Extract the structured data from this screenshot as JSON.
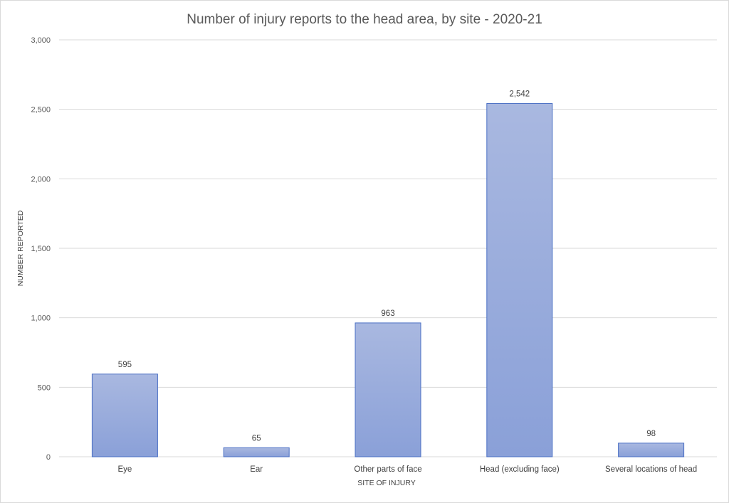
{
  "chart_data": {
    "type": "bar",
    "title": "Number of injury reports to the head area, by site - 2020-21",
    "xlabel": "SITE OF INJURY",
    "ylabel": "NUMBER REPORTED",
    "categories": [
      "Eye",
      "Ear",
      "Other parts of face",
      "Head (excluding face)",
      "Several locations of head"
    ],
    "values": [
      595,
      65,
      963,
      2542,
      98
    ],
    "data_labels": [
      "595",
      "65",
      "963",
      "2,542",
      "98"
    ],
    "ylim": [
      0,
      3000
    ],
    "yticks": [
      0,
      500,
      1000,
      1500,
      2000,
      2500,
      3000
    ],
    "ytick_labels": [
      "0",
      "500",
      "1,000",
      "1,500",
      "2,000",
      "2,500",
      "3,000"
    ],
    "grid": true,
    "legend": "none",
    "colors": {
      "bar_top": "#a9b8e0",
      "bar_bottom": "#8aa0d8",
      "bar_border": "#4a6fc4",
      "grid": "#d9d9d9"
    }
  }
}
